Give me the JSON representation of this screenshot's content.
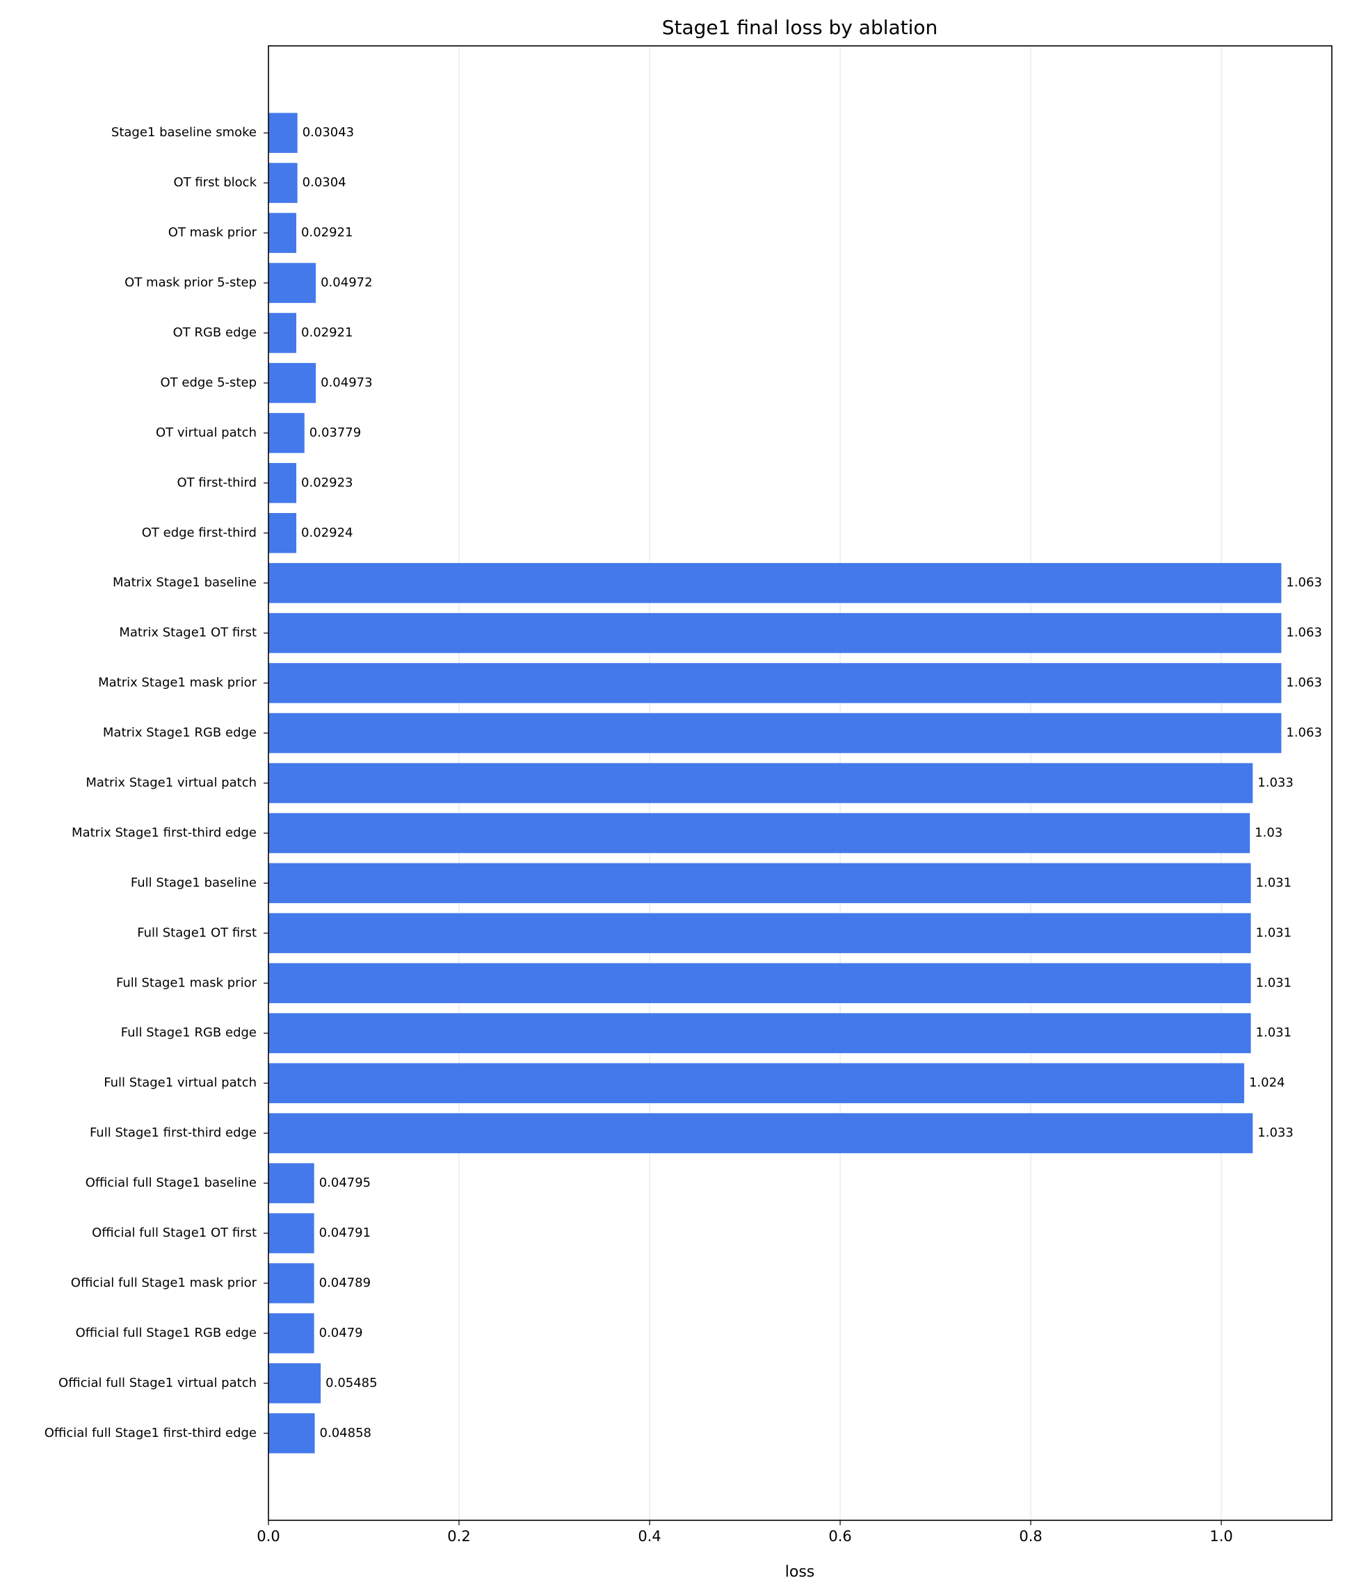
{
  "chart_data": {
    "type": "barh",
    "title": "Stage1 final loss by ablation",
    "xlabel": "loss",
    "categories": [
      "Stage1 baseline smoke",
      "OT first block",
      "OT mask prior",
      "OT mask prior 5-step",
      "OT RGB edge",
      "OT edge 5-step",
      "OT virtual patch",
      "OT first-third",
      "OT edge first-third",
      "Matrix Stage1 baseline",
      "Matrix Stage1 OT first",
      "Matrix Stage1 mask prior",
      "Matrix Stage1 RGB edge",
      "Matrix Stage1 virtual patch",
      "Matrix Stage1 first-third edge",
      "Full Stage1 baseline",
      "Full Stage1 OT first",
      "Full Stage1 mask prior",
      "Full Stage1 RGB edge",
      "Full Stage1 virtual patch",
      "Full Stage1 first-third edge",
      "Official full Stage1 baseline",
      "Official full Stage1 OT first",
      "Official full Stage1 mask prior",
      "Official full Stage1 RGB edge",
      "Official full Stage1 virtual patch",
      "Official full Stage1 first-third edge"
    ],
    "values": [
      0.03043,
      0.0304,
      0.02921,
      0.04972,
      0.02921,
      0.04973,
      0.03779,
      0.02923,
      0.02924,
      1.063,
      1.063,
      1.063,
      1.063,
      1.033,
      1.03,
      1.031,
      1.031,
      1.031,
      1.031,
      1.024,
      1.033,
      0.04795,
      0.04791,
      0.04789,
      0.0479,
      0.05485,
      0.04858
    ],
    "color": "#4479ec",
    "xlim": [
      0,
      1.116
    ],
    "xticks": [
      {
        "value": 0,
        "label": "0.0"
      },
      0.2,
      0.4,
      0.6,
      0.8,
      {
        "value": 1,
        "label": "1.0"
      }
    ],
    "grid": true
  }
}
